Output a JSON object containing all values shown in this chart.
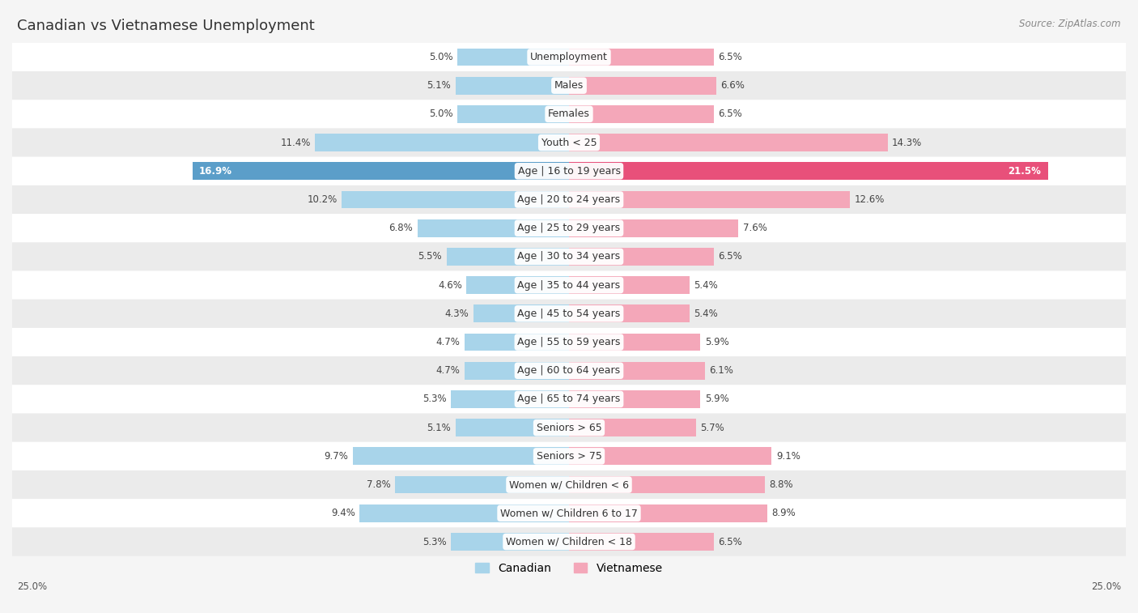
{
  "title": "Canadian vs Vietnamese Unemployment",
  "source": "Source: ZipAtlas.com",
  "categories": [
    "Unemployment",
    "Males",
    "Females",
    "Youth < 25",
    "Age | 16 to 19 years",
    "Age | 20 to 24 years",
    "Age | 25 to 29 years",
    "Age | 30 to 34 years",
    "Age | 35 to 44 years",
    "Age | 45 to 54 years",
    "Age | 55 to 59 years",
    "Age | 60 to 64 years",
    "Age | 65 to 74 years",
    "Seniors > 65",
    "Seniors > 75",
    "Women w/ Children < 6",
    "Women w/ Children 6 to 17",
    "Women w/ Children < 18"
  ],
  "canadian": [
    5.0,
    5.1,
    5.0,
    11.4,
    16.9,
    10.2,
    6.8,
    5.5,
    4.6,
    4.3,
    4.7,
    4.7,
    5.3,
    5.1,
    9.7,
    7.8,
    9.4,
    5.3
  ],
  "vietnamese": [
    6.5,
    6.6,
    6.5,
    14.3,
    21.5,
    12.6,
    7.6,
    6.5,
    5.4,
    5.4,
    5.9,
    6.1,
    5.9,
    5.7,
    9.1,
    8.8,
    8.9,
    6.5
  ],
  "canadian_color": "#a8d4ea",
  "vietnamese_color": "#f4a7b9",
  "canadian_highlight": "#5b9ec9",
  "vietnamese_highlight": "#e8507a",
  "axis_limit": 25.0,
  "bar_height": 0.62,
  "bg_color": "#f5f5f5",
  "row_color_light": "#ffffff",
  "row_color_dark": "#ebebeb",
  "label_fontsize": 9,
  "title_fontsize": 13,
  "value_fontsize": 8.5
}
